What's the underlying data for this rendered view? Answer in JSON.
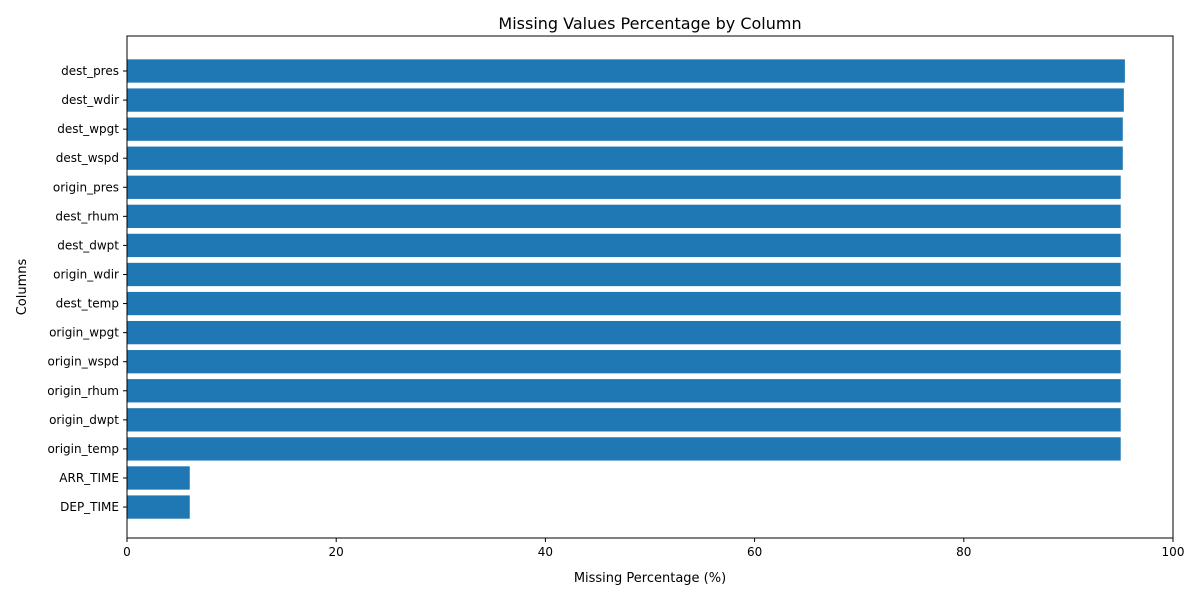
{
  "chart_data": {
    "type": "bar",
    "orientation": "horizontal",
    "title": "Missing Values Percentage by Column",
    "xlabel": "Missing Percentage (%)",
    "ylabel": "Columns",
    "xlim": [
      0,
      100
    ],
    "x_ticks": [
      "0",
      "20",
      "40",
      "60",
      "80",
      "100"
    ],
    "categories": [
      "dest_pres",
      "dest_wdir",
      "dest_wpgt",
      "dest_wspd",
      "origin_pres",
      "dest_rhum",
      "dest_dwpt",
      "origin_wdir",
      "dest_temp",
      "origin_wpgt",
      "origin_wspd",
      "origin_rhum",
      "origin_dwpt",
      "origin_temp",
      "ARR_TIME",
      "DEP_TIME"
    ],
    "values": [
      95.4,
      95.3,
      95.2,
      95.2,
      95.0,
      95.0,
      95.0,
      95.0,
      95.0,
      95.0,
      95.0,
      95.0,
      95.0,
      95.0,
      6.0,
      6.0
    ],
    "bar_color": "#1f77b4",
    "grid": false,
    "legend": "none"
  }
}
